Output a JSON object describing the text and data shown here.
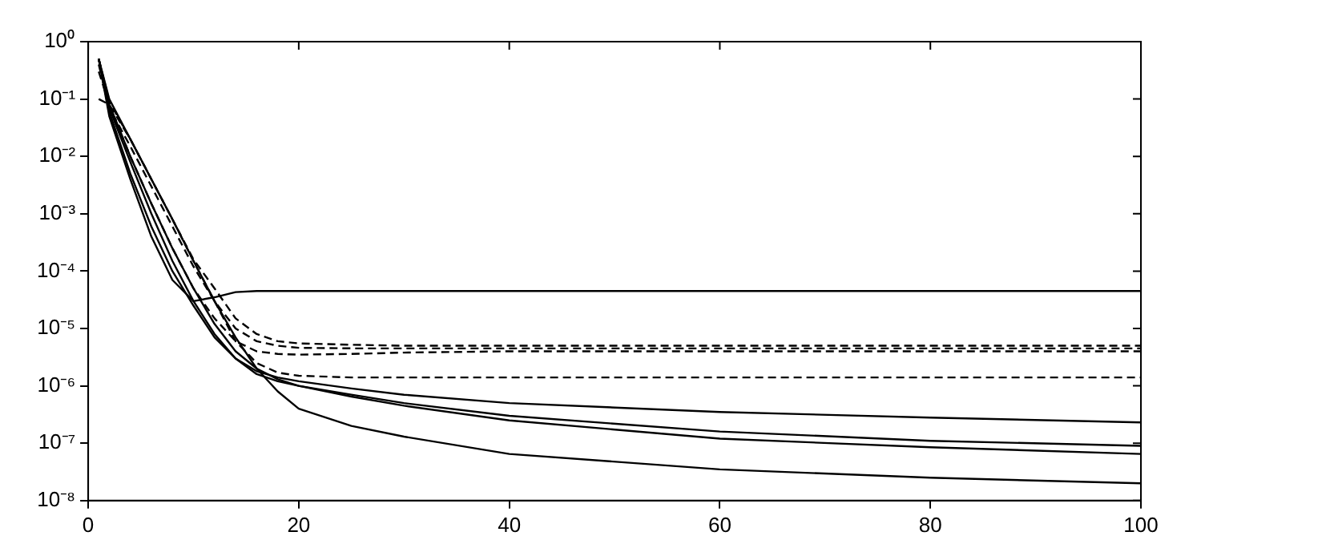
{
  "chart_data": {
    "type": "line",
    "log": "y",
    "grid": false,
    "legend": false,
    "marker": "none",
    "x": [
      1,
      2,
      4,
      6,
      8,
      10,
      12,
      14,
      16,
      18,
      20,
      25,
      30,
      40,
      60,
      80,
      100
    ],
    "xlim": [
      0,
      100
    ],
    "xticks": [
      0,
      20,
      40,
      60,
      80,
      100
    ],
    "ylim": [
      1e-08,
      1
    ],
    "yticks": [
      {
        "value": 1e-08,
        "label": "10⁻⁸"
      },
      {
        "value": 1e-07,
        "label": "10⁻⁷"
      },
      {
        "value": 1e-06,
        "label": "10⁻⁶"
      },
      {
        "value": 1e-05,
        "label": "10⁻⁵"
      },
      {
        "value": 0.0001,
        "label": "10⁻⁴"
      },
      {
        "value": 0.001,
        "label": "10⁻³"
      },
      {
        "value": 0.01,
        "label": "10⁻²"
      },
      {
        "value": 0.1,
        "label": "10⁻¹"
      },
      {
        "value": 1,
        "label": "10⁰"
      }
    ],
    "series": [
      {
        "color": "#000000",
        "line_style": "dashed",
        "values": [
          0.1,
          0.08,
          0.02,
          0.004,
          0.0008,
          0.00016,
          5e-05,
          1.5e-05,
          8e-06,
          6e-06,
          5.5e-06,
          5.2e-06,
          5e-06,
          5e-06,
          5e-06,
          5e-06,
          5e-06
        ]
      },
      {
        "color": "#000000",
        "line_style": "dashed",
        "values": [
          0.4,
          0.07,
          0.015,
          0.003,
          0.0006,
          0.00012,
          3e-05,
          1e-05,
          6e-06,
          5e-06,
          4.6e-06,
          4.5e-06,
          4.5e-06,
          4.5e-06,
          4.5e-06,
          4.5e-06,
          4.5e-06
        ]
      },
      {
        "color": "#000000",
        "line_style": "dashed",
        "values": [
          0.3,
          0.08,
          0.01,
          0.0015,
          0.00025,
          5e-05,
          1.5e-05,
          6e-06,
          4e-06,
          3.6e-06,
          3.5e-06,
          3.6e-06,
          3.8e-06,
          4e-06,
          4e-06,
          4e-06,
          4e-06
        ]
      },
      {
        "color": "#000000",
        "line_style": "dashed",
        "values": [
          0.5,
          0.09,
          0.02,
          0.004,
          0.0008,
          0.00015,
          3e-05,
          6e-06,
          2.5e-06,
          1.7e-06,
          1.5e-06,
          1.4e-06,
          1.4e-06,
          1.4e-06,
          1.4e-06,
          1.4e-06,
          1.4e-06
        ]
      },
      {
        "color": "#000000",
        "line_style": "solid",
        "values": [
          0.5,
          0.05,
          0.004,
          0.0004,
          7e-05,
          3e-05,
          3.5e-05,
          4.3e-05,
          4.5e-05,
          4.5e-05,
          4.5e-05,
          4.5e-05,
          4.5e-05,
          4.5e-05,
          4.5e-05,
          4.5e-05,
          4.5e-05
        ]
      },
      {
        "color": "#000000",
        "line_style": "solid",
        "values": [
          0.5,
          0.1,
          0.02,
          0.004,
          0.0008,
          0.00015,
          3e-05,
          7e-06,
          2e-06,
          8e-07,
          4e-07,
          2e-07,
          1.3e-07,
          6.5e-08,
          3.5e-08,
          2.5e-08,
          2e-08
        ]
      },
      {
        "color": "#000000",
        "line_style": "solid",
        "values": [
          0.5,
          0.06,
          0.005,
          0.0006,
          0.0001,
          2.5e-05,
          7e-06,
          3e-06,
          1.8e-06,
          1.4e-06,
          1.2e-06,
          9e-07,
          7e-07,
          5e-07,
          3.5e-07,
          2.8e-07,
          2.3e-07
        ]
      },
      {
        "color": "#000000",
        "line_style": "solid",
        "values": [
          0.5,
          0.07,
          0.008,
          0.001,
          0.00015,
          3e-05,
          8e-06,
          3e-06,
          1.6e-06,
          1.2e-06,
          1e-06,
          7e-07,
          5e-07,
          3e-07,
          1.6e-07,
          1.1e-07,
          9e-08
        ]
      },
      {
        "color": "#000000",
        "line_style": "solid",
        "values": [
          0.5,
          0.08,
          0.01,
          0.0015,
          0.00025,
          5e-05,
          1.2e-05,
          4e-06,
          2e-06,
          1.3e-06,
          1e-06,
          6.5e-07,
          4.5e-07,
          2.5e-07,
          1.2e-07,
          8.5e-08,
          6.5e-08
        ]
      }
    ]
  }
}
